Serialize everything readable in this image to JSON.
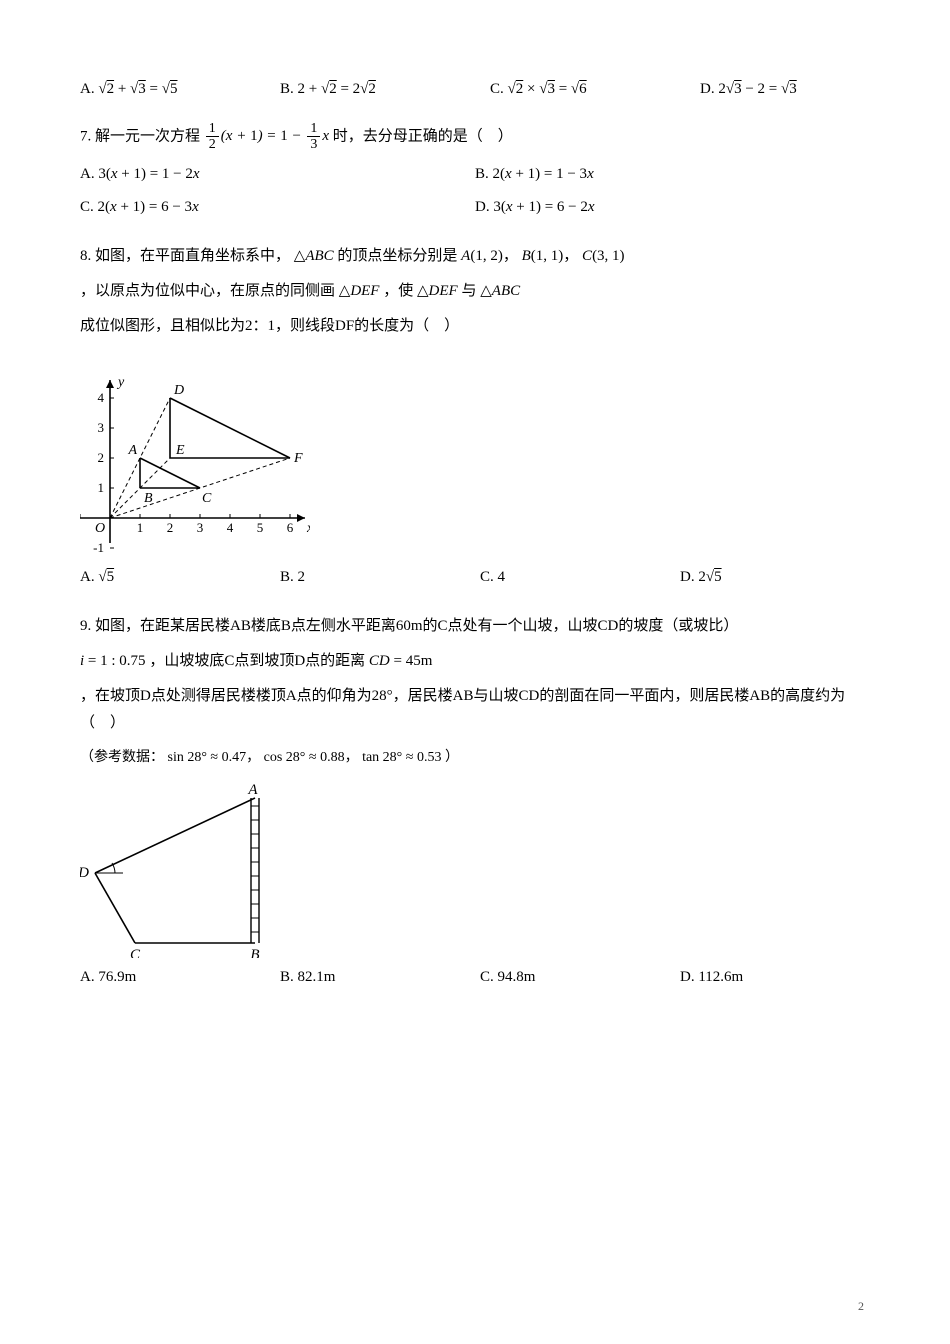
{
  "q6_options": {
    "A_label": "A.",
    "B_label": "B.",
    "C_label": "C.",
    "D_label": "D."
  },
  "q7": {
    "num": "7.",
    "stem_prefix": "解一元一次方程",
    "stem_suffix": "时，去分母正确的是（　）",
    "A_label": "A.",
    "B_label": "B.",
    "C_label": "C.",
    "D_label": "D."
  },
  "q8": {
    "num": "8.",
    "line1a": "如图，在平面直角坐标系中，",
    "line1b": " 的顶点坐标分别是 ",
    "comma": "，",
    "line2a": "，以原点为位似中心，在原点的同侧画",
    "line2b": "，使",
    "line2c": " 与 ",
    "line3": "成位似图形，且相似比为2：1，则线段DF的长度为（　）",
    "A_label": "A.",
    "B_label": "B.",
    "B_val": "2",
    "C_label": "C.",
    "C_val": "4",
    "D_label": "D.",
    "graph": {
      "x_ticks": [
        "-1",
        "1",
        "2",
        "3",
        "4",
        "5",
        "6"
      ],
      "y_ticks": [
        "-1",
        "1",
        "2",
        "3",
        "4"
      ],
      "points": {
        "A": {
          "x": 1,
          "y": 2,
          "label": "A"
        },
        "B": {
          "x": 1,
          "y": 1,
          "label": "B"
        },
        "C": {
          "x": 3,
          "y": 1,
          "label": "C"
        },
        "D": {
          "x": 2,
          "y": 4,
          "label": "D"
        },
        "E": {
          "x": 2,
          "y": 2,
          "label": "E"
        },
        "F": {
          "x": 6,
          "y": 2,
          "label": "F"
        }
      },
      "y_label": "y",
      "x_label": "x",
      "O_label": "O"
    }
  },
  "q9": {
    "num": "9.",
    "line1": "如图，在距某居民楼AB楼底B点左侧水平距离60m的C点处有一个山坡，山坡CD的坡度（或坡比）",
    "line2a": "，山坡坡底C点到坡顶D点的距离 ",
    "line3": "，在坡顶D点处测得居民楼楼顶A点的仰角为28°，居民楼AB与山坡CD的剖面在同一平面内，则居民楼AB的高度约为（　）",
    "ref_prefix": "（参考数据：",
    "ref_suffix": "）",
    "A_label": "A.",
    "A_val": "76.9m",
    "B_label": "B.",
    "B_val": "82.1m",
    "C_label": "C.",
    "C_val": "94.8m",
    "D_label": "D.",
    "D_val": "112.6m",
    "diagram": {
      "A": "A",
      "B": "B",
      "C": "C",
      "D": "D"
    }
  },
  "page_number": "2"
}
